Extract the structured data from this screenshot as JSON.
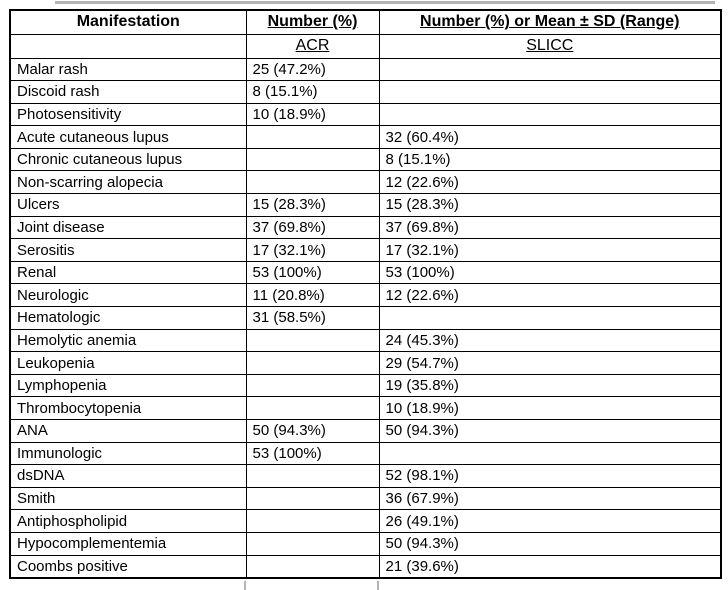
{
  "page": {
    "background": "#ffffff",
    "text_color": "#000000",
    "border_color": "#000000",
    "artifact_line_color": "#b4b4b4"
  },
  "table": {
    "header": {
      "col1": "Manifestation",
      "col2": "Number (%)",
      "col3": "Number (%) or Mean ± SD (Range)",
      "sub_col1": "",
      "sub_col2": "ACR",
      "sub_col3": "SLICC"
    },
    "rows": [
      {
        "manifestation": "Malar rash",
        "acr": "25 (47.2%)",
        "slicc": ""
      },
      {
        "manifestation": "Discoid rash",
        "acr": "8 (15.1%)",
        "slicc": ""
      },
      {
        "manifestation": "Photosensitivity",
        "acr": "10 (18.9%)",
        "slicc": ""
      },
      {
        "manifestation": "Acute cutaneous lupus",
        "acr": "",
        "slicc": "32 (60.4%)"
      },
      {
        "manifestation": "Chronic cutaneous lupus",
        "acr": "",
        "slicc": "8 (15.1%)"
      },
      {
        "manifestation": "Non-scarring alopecia",
        "acr": "",
        "slicc": "12 (22.6%)"
      },
      {
        "manifestation": "Ulcers",
        "acr": "15 (28.3%)",
        "slicc": "15 (28.3%)"
      },
      {
        "manifestation": "Joint disease",
        "acr": "37 (69.8%)",
        "slicc": "37 (69.8%)"
      },
      {
        "manifestation": "Serositis",
        "acr": "17 (32.1%)",
        "slicc": "17 (32.1%)"
      },
      {
        "manifestation": "Renal",
        "acr": "53 (100%)",
        "slicc": "53 (100%)"
      },
      {
        "manifestation": "Neurologic",
        "acr": "11 (20.8%)",
        "slicc": "12 (22.6%)"
      },
      {
        "manifestation": "Hematologic",
        "acr": "31 (58.5%)",
        "slicc": ""
      },
      {
        "manifestation": "Hemolytic anemia",
        "acr": "",
        "slicc": "24 (45.3%)"
      },
      {
        "manifestation": "Leukopenia",
        "acr": "",
        "slicc": "29 (54.7%)"
      },
      {
        "manifestation": "Lymphopenia",
        "acr": "",
        "slicc": "19 (35.8%)"
      },
      {
        "manifestation": "Thrombocytopenia",
        "acr": "",
        "slicc": "10 (18.9%)"
      },
      {
        "manifestation": "ANA",
        "acr": "50 (94.3%)",
        "slicc": "50 (94.3%)"
      },
      {
        "manifestation": "Immunologic",
        "acr": "53 (100%)",
        "slicc": ""
      },
      {
        "manifestation": "dsDNA",
        "acr": "",
        "slicc": "52 (98.1%)"
      },
      {
        "manifestation": "Smith",
        "acr": "",
        "slicc": "36 (67.9%)"
      },
      {
        "manifestation": "Antiphospholipid",
        "acr": "",
        "slicc": "26 (49.1%)"
      },
      {
        "manifestation": "Hypocomplementemia",
        "acr": "",
        "slicc": "50 (94.3%)"
      },
      {
        "manifestation": "Coombs positive",
        "acr": "",
        "slicc": "21 (39.6%)"
      }
    ]
  }
}
